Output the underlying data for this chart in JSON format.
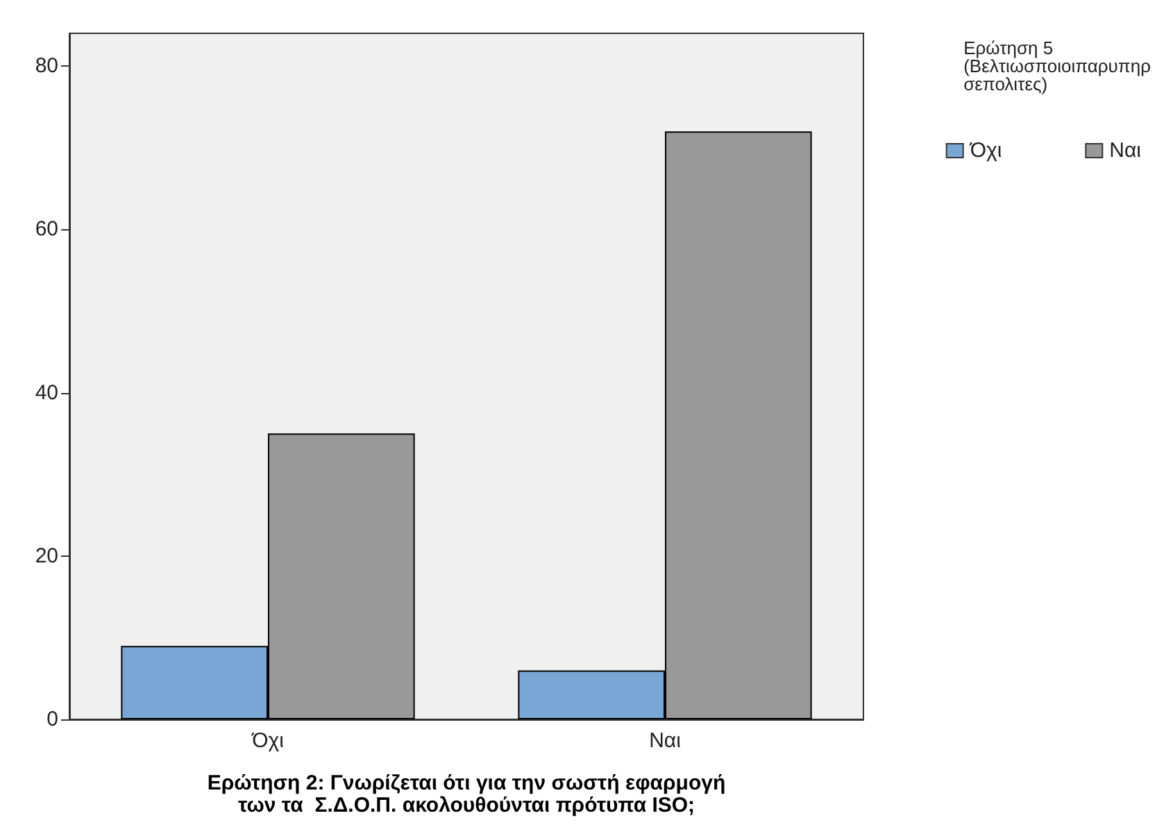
{
  "chart_data": {
    "type": "bar",
    "xlabel": "Ερώτηση 2: Γνωρίζεται ότι για την σωστή εφαρμογή\nτων τα  Σ.Δ.Ο.Π. ακολουθούνται πρότυπα ISO;",
    "legend_title": "Ερώτηση 5\n(Βελτιωσποιοιπαρυπηρ\nσεπολιτες)",
    "categories": [
      "Όχι",
      "Ναι"
    ],
    "series": [
      {
        "name": "Όχι",
        "color": "#79a7d5",
        "values": [
          9,
          6
        ]
      },
      {
        "name": "Ναι",
        "color": "#999999",
        "values": [
          35,
          72
        ]
      }
    ],
    "ylim": [
      0,
      84
    ],
    "yticks": [
      0,
      20,
      40,
      60,
      80
    ],
    "grid": false,
    "legend": "top right"
  }
}
